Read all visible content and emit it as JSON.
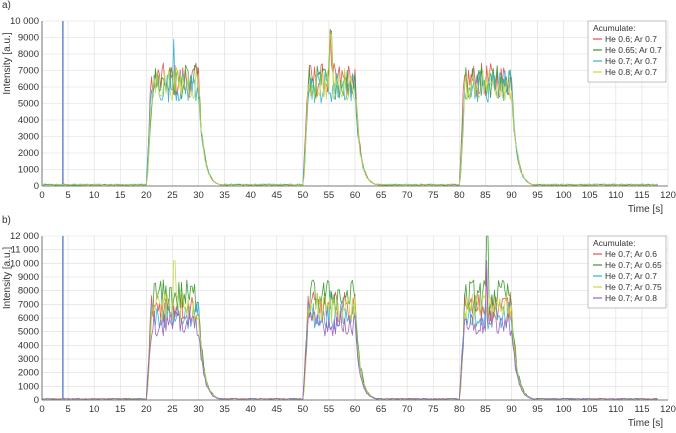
{
  "chart_data": [
    {
      "panel_label": "a)",
      "type": "line",
      "xlabel": "Time [s]",
      "ylabel": "Intensity [a.u.]",
      "xlim": [
        0,
        120
      ],
      "ylim": [
        0,
        10000
      ],
      "xticks": [
        0,
        5,
        10,
        15,
        20,
        25,
        30,
        35,
        40,
        45,
        50,
        55,
        60,
        65,
        70,
        75,
        80,
        85,
        90,
        95,
        100,
        105,
        110,
        115,
        120
      ],
      "yticks": [
        0,
        1000,
        2000,
        3000,
        4000,
        5000,
        6000,
        7000,
        8000,
        9000,
        10000
      ],
      "ytick_labels": [
        "0",
        "1000",
        "2000",
        "3000",
        "4000",
        "5000",
        "6000",
        "7000",
        "8000",
        "9000",
        "10 000"
      ],
      "grid": true,
      "legend_position": "top-right",
      "legend_title": "Acumulate:",
      "marker_line": {
        "x": 4,
        "color": "#7090d0"
      },
      "pulses": [
        [
          20,
          30
        ],
        [
          50,
          60
        ],
        [
          80,
          90
        ]
      ],
      "series": [
        {
          "name": "He 0.6; Ar 0.7",
          "color": "#e05050",
          "level": 6400,
          "peak": 9500
        },
        {
          "name": "He 0.65; Ar 0.7",
          "color": "#3a9a2a",
          "level": 6300,
          "peak": 9400
        },
        {
          "name": "He 0.7; Ar 0.7",
          "color": "#30b0d8",
          "level": 6000,
          "peak": 8900
        },
        {
          "name": "He 0.8; Ar 0.7",
          "color": "#c8d840",
          "level": 6200,
          "peak": 9200
        }
      ]
    },
    {
      "panel_label": "b)",
      "type": "line",
      "xlabel": "Time [s]",
      "ylabel": "Intensity [a.u.]",
      "xlim": [
        0,
        120
      ],
      "ylim": [
        0,
        12000
      ],
      "xticks": [
        0,
        5,
        10,
        15,
        20,
        25,
        30,
        35,
        40,
        45,
        50,
        55,
        60,
        65,
        70,
        75,
        80,
        85,
        90,
        95,
        100,
        105,
        110,
        115,
        120
      ],
      "yticks": [
        0,
        1000,
        2000,
        3000,
        4000,
        5000,
        6000,
        7000,
        8000,
        9000,
        10000,
        11000,
        12000
      ],
      "ytick_labels": [
        "0",
        "1000",
        "2000",
        "3000",
        "4000",
        "5000",
        "6000",
        "7000",
        "8000",
        "9000",
        "10 000",
        "11 000",
        "12 000"
      ],
      "grid": true,
      "legend_position": "top-right",
      "legend_title": "Acumulate:",
      "marker_line": {
        "x": 4,
        "color": "#7090d0"
      },
      "pulses": [
        [
          20,
          30
        ],
        [
          50,
          60
        ],
        [
          80,
          90
        ]
      ],
      "series": [
        {
          "name": "He 0.7; Ar 0.6",
          "color": "#e05050",
          "level": 6800,
          "peak": 9600
        },
        {
          "name": "He 0.7; Ar 0.65",
          "color": "#3a9a2a",
          "level": 7600,
          "peak": 12000
        },
        {
          "name": "He 0.7; Ar 0.7",
          "color": "#30b0d8",
          "level": 6200,
          "peak": 8000
        },
        {
          "name": "He 0.7; Ar 0.75",
          "color": "#c8d840",
          "level": 6700,
          "peak": 10200
        },
        {
          "name": "He 0.7; Ar 0.8",
          "color": "#9a60c0",
          "level": 5600,
          "peak": 10200
        }
      ]
    }
  ]
}
